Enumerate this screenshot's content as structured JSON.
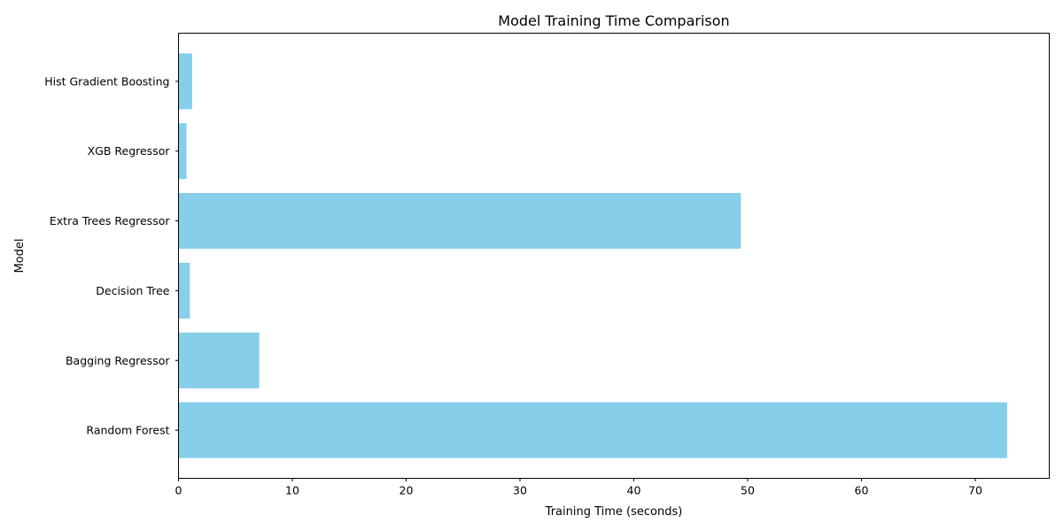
{
  "chart_data": {
    "type": "bar",
    "orientation": "horizontal",
    "title": "Model Training Time Comparison",
    "xlabel": "Training Time (seconds)",
    "ylabel": "Model",
    "categories": [
      "Random Forest",
      "Bagging Regressor",
      "Decision Tree",
      "Extra Trees Regressor",
      "XGB Regressor",
      "Hist Gradient Boosting"
    ],
    "values": [
      72.8,
      7.1,
      1.0,
      49.4,
      0.7,
      1.2
    ],
    "xlim": [
      0,
      76.5
    ],
    "xticks": [
      0,
      10,
      20,
      30,
      40,
      50,
      60,
      70
    ],
    "grid": false,
    "legend": "none",
    "bar_color": "#87ceeb"
  }
}
